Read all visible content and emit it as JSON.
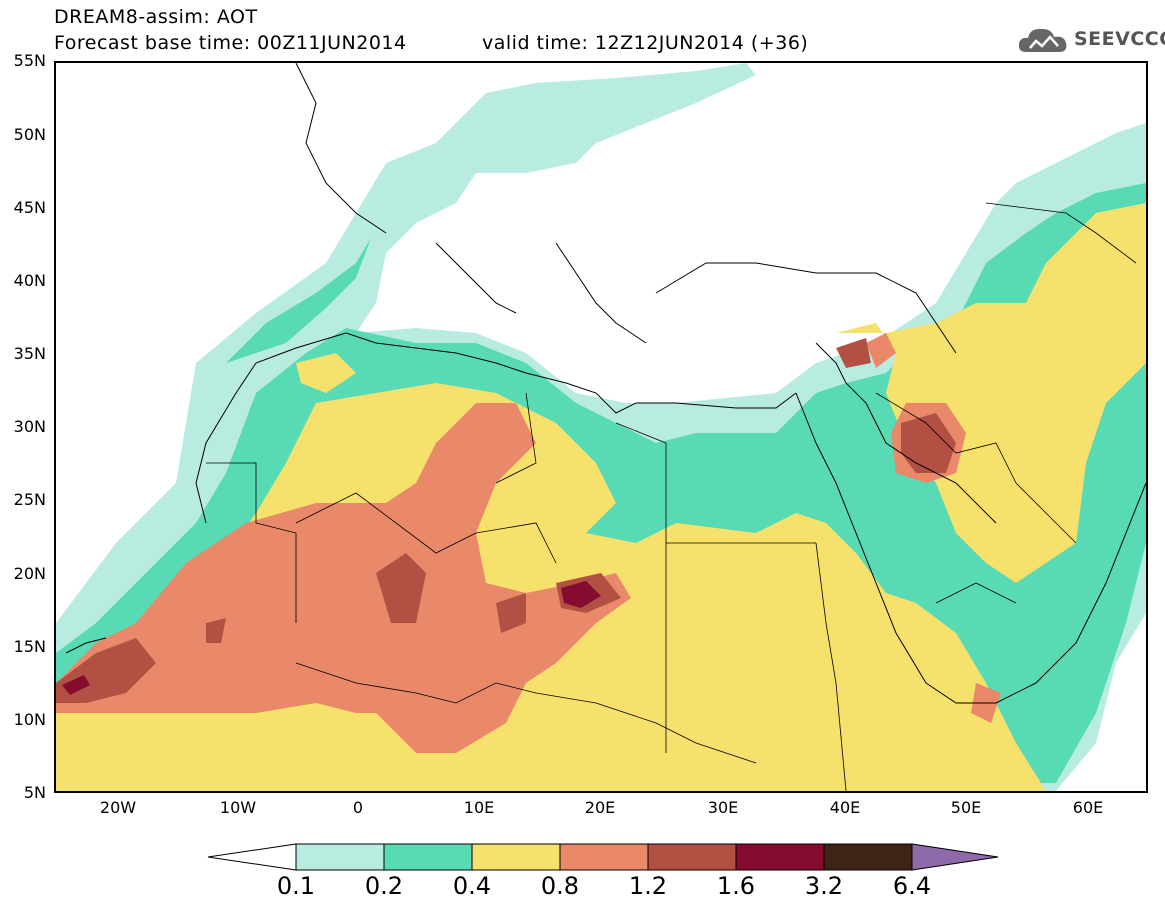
{
  "header": {
    "model_line": "DREAM8-assim: AOT",
    "base_time": "Forecast base time: 00Z11JUN2014",
    "valid_time": "valid time: 12Z12JUN2014 (+36)"
  },
  "logo": {
    "text": "SEEVCCC",
    "icon": "cloud-logo-icon"
  },
  "map": {
    "lat_ticks": [
      "55N",
      "50N",
      "45N",
      "40N",
      "35N",
      "30N",
      "25N",
      "20N",
      "15N",
      "10N",
      "5N"
    ],
    "lon_ticks": [
      "20W",
      "10W",
      "0",
      "10E",
      "20E",
      "30E",
      "40E",
      "50E",
      "60E"
    ],
    "lat_range": [
      5,
      55
    ],
    "lon_range": [
      -25,
      65
    ]
  },
  "colorbar": {
    "labels": [
      "0.1",
      "0.2",
      "0.4",
      "0.8",
      "1.2",
      "1.6",
      "3.2",
      "6.4"
    ],
    "colors": [
      "#ffffff",
      "#b9ece0",
      "#58dbb4",
      "#f5e16c",
      "#e9896a",
      "#b25043",
      "#860c2f",
      "#3d2417",
      "#8f6aaa"
    ]
  }
}
